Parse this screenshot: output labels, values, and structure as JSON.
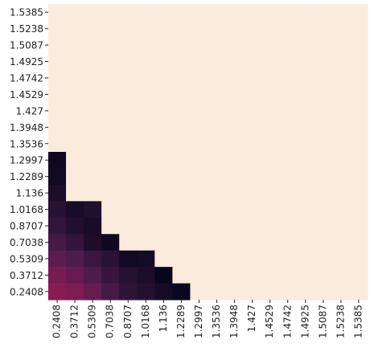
{
  "chart_data": {
    "type": "heatmap",
    "x": [
      "0.2408",
      "0.3712",
      "0.5309",
      "0.7038",
      "0.8707",
      "1.0168",
      "1.136",
      "1.2289",
      "1.2997",
      "1.3536",
      "1.3948",
      "1.427",
      "1.4529",
      "1.4742",
      "1.4925",
      "1.5087",
      "1.5238",
      "1.5385"
    ],
    "y": [
      "1.5385",
      "1.5238",
      "1.5087",
      "1.4925",
      "1.4742",
      "1.4529",
      "1.427",
      "1.3948",
      "1.3536",
      "1.2997",
      "1.2289",
      "1.136",
      "1.0168",
      "0.8707",
      "0.7038",
      "0.5309",
      "0.3712",
      "0.2408"
    ],
    "z": [
      [
        1,
        1,
        1,
        1,
        1,
        1,
        1,
        1,
        1,
        1,
        1,
        1,
        1,
        1,
        1,
        1,
        1,
        1
      ],
      [
        1,
        1,
        1,
        1,
        1,
        1,
        1,
        1,
        1,
        1,
        1,
        1,
        1,
        1,
        1,
        1,
        1,
        1
      ],
      [
        1,
        1,
        1,
        1,
        1,
        1,
        1,
        1,
        1,
        1,
        1,
        1,
        1,
        1,
        1,
        1,
        1,
        1
      ],
      [
        1,
        1,
        1,
        1,
        1,
        1,
        1,
        1,
        1,
        1,
        1,
        1,
        1,
        1,
        1,
        1,
        1,
        1
      ],
      [
        1,
        1,
        1,
        1,
        1,
        1,
        1,
        1,
        1,
        1,
        1,
        1,
        1,
        1,
        1,
        1,
        1,
        1
      ],
      [
        1,
        1,
        1,
        1,
        1,
        1,
        1,
        1,
        1,
        1,
        1,
        1,
        1,
        1,
        1,
        1,
        1,
        1
      ],
      [
        1,
        1,
        1,
        1,
        1,
        1,
        1,
        1,
        1,
        1,
        1,
        1,
        1,
        1,
        1,
        1,
        1,
        1
      ],
      [
        1,
        1,
        1,
        1,
        1,
        1,
        1,
        1,
        1,
        1,
        1,
        1,
        1,
        1,
        1,
        1,
        1,
        1
      ],
      [
        1,
        1,
        1,
        1,
        1,
        1,
        1,
        1,
        1,
        1,
        1,
        1,
        1,
        1,
        1,
        1,
        1,
        1
      ],
      [
        0.03,
        1,
        1,
        1,
        1,
        1,
        1,
        1,
        1,
        1,
        1,
        1,
        1,
        1,
        1,
        1,
        1,
        1
      ],
      [
        0.04,
        1,
        1,
        1,
        1,
        1,
        1,
        1,
        1,
        1,
        1,
        1,
        1,
        1,
        1,
        1,
        1,
        1
      ],
      [
        0.07,
        1,
        1,
        1,
        1,
        1,
        1,
        1,
        1,
        1,
        1,
        1,
        1,
        1,
        1,
        1,
        1,
        1
      ],
      [
        0.1,
        0.06,
        0.08,
        1,
        1,
        1,
        1,
        1,
        1,
        1,
        1,
        1,
        1,
        1,
        1,
        1,
        1,
        1
      ],
      [
        0.13,
        0.08,
        0.06,
        1,
        1,
        1,
        1,
        1,
        1,
        1,
        1,
        1,
        1,
        1,
        1,
        1,
        1,
        1
      ],
      [
        0.18,
        0.13,
        0.07,
        0.03,
        1,
        1,
        1,
        1,
        1,
        1,
        1,
        1,
        1,
        1,
        1,
        1,
        1,
        1
      ],
      [
        0.24,
        0.2,
        0.15,
        0.11,
        0.04,
        0.05,
        1,
        1,
        1,
        1,
        1,
        1,
        1,
        1,
        1,
        1,
        1,
        1
      ],
      [
        0.3,
        0.26,
        0.2,
        0.14,
        0.1,
        0.07,
        0.01,
        1,
        1,
        1,
        1,
        1,
        1,
        1,
        1,
        1,
        1,
        1
      ],
      [
        0.34,
        0.32,
        0.26,
        0.18,
        0.12,
        0.09,
        0.05,
        0.02,
        1,
        1,
        1,
        1,
        1,
        1,
        1,
        1,
        1,
        1
      ]
    ],
    "zlim": [
      0,
      1
    ],
    "colormap": [
      "#03051a",
      "#4c1d4b",
      "#a11a5b",
      "#e83f3f",
      "#f69c73",
      "#faebdd"
    ]
  }
}
